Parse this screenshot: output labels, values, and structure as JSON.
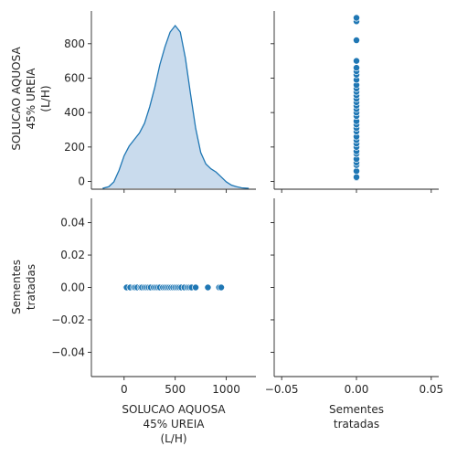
{
  "chart_data": {
    "type": "pairplot",
    "variables": [
      "SOLUCAO AQUOSA 45% UREIA (L/H)",
      "Sementes tratadas"
    ],
    "variable_labels": [
      [
        "SOLUCAO AQUOSA",
        "45% UREIA",
        "(L/H)"
      ],
      [
        "Sementes",
        "tratadas"
      ]
    ],
    "colors": {
      "kde_line": "#1f77b4",
      "kde_fill": "#c6d9ec",
      "point_fill": "#1f77b4",
      "point_edge": "#ffffff"
    },
    "diagonal_kind": "kde",
    "offdiagonal_kind": "scatter",
    "ureia_values": [
      20,
      25,
      60,
      95,
      110,
      130,
      160,
      175,
      200,
      220,
      240,
      260,
      290,
      310,
      330,
      350,
      380,
      400,
      420,
      440,
      460,
      480,
      500,
      520,
      540,
      560,
      590,
      620,
      640,
      660,
      700,
      820,
      930,
      950
    ],
    "sementes_values": [
      0,
      0,
      0,
      0,
      0,
      0,
      0,
      0,
      0,
      0,
      0,
      0,
      0,
      0,
      0,
      0,
      0,
      0,
      0,
      0,
      0,
      0,
      0,
      0,
      0,
      0,
      0,
      0,
      0,
      0,
      0,
      0,
      0,
      0
    ],
    "kde_curve": {
      "x": [
        -210,
        -150,
        -100,
        -50,
        0,
        50,
        100,
        150,
        200,
        250,
        300,
        350,
        400,
        450,
        500,
        550,
        600,
        650,
        700,
        750,
        800,
        850,
        900,
        950,
        1000,
        1050,
        1100,
        1150,
        1220
      ],
      "density": [
        0.0,
        0.01,
        0.04,
        0.11,
        0.2,
        0.26,
        0.3,
        0.34,
        0.4,
        0.5,
        0.62,
        0.76,
        0.87,
        0.96,
        1.0,
        0.96,
        0.8,
        0.58,
        0.37,
        0.22,
        0.15,
        0.12,
        0.1,
        0.07,
        0.04,
        0.02,
        0.01,
        0.003,
        0.0
      ]
    },
    "axes": {
      "ureia_range": [
        -320,
        1290
      ],
      "ureia_ticks": [
        0,
        500,
        1000
      ],
      "ureia_ticklabels": [
        "0",
        "500",
        "1000"
      ],
      "ureia_y_range": [
        -45,
        990
      ],
      "ureia_y_ticks": [
        0,
        200,
        400,
        600,
        800
      ],
      "ureia_y_ticklabels": [
        "0",
        "200",
        "400",
        "600",
        "800"
      ],
      "sementes_range": [
        -0.055,
        0.055
      ],
      "sementes_ticks": [
        -0.04,
        -0.02,
        0.0,
        0.02,
        0.04
      ],
      "sementes_ticklabels": [
        "−0.04",
        "−0.02",
        "0.00",
        "0.02",
        "0.04"
      ],
      "sementes_x_ticks": [
        -0.05,
        0.0,
        0.05
      ],
      "sementes_x_ticklabels": [
        "−0.05",
        "0.00",
        "0.05"
      ]
    },
    "grid": false,
    "legend": "none"
  }
}
